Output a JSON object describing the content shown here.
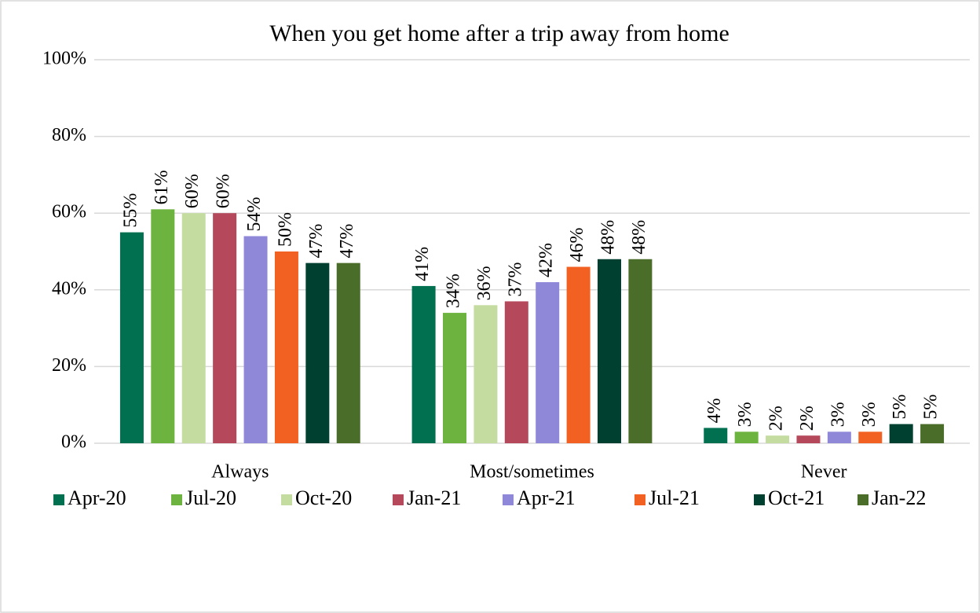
{
  "chart_data": {
    "type": "bar",
    "title": "When you get home after a trip away from home",
    "categories": [
      "Always",
      "Most/sometimes",
      "Never"
    ],
    "series": [
      {
        "name": "Apr-20",
        "color": "#007050",
        "values": [
          55,
          41,
          4
        ],
        "value_labels": [
          "55%",
          "41%",
          "4%"
        ]
      },
      {
        "name": "Jul-20",
        "color": "#6db33f",
        "values": [
          61,
          34,
          3
        ],
        "value_labels": [
          "61%",
          "34%",
          "3%"
        ]
      },
      {
        "name": "Oct-20",
        "color": "#c5dca0",
        "values": [
          60,
          36,
          2
        ],
        "value_labels": [
          "60%",
          "36%",
          "2%"
        ]
      },
      {
        "name": "Jan-21",
        "color": "#b5495b",
        "values": [
          60,
          37,
          2
        ],
        "value_labels": [
          "60%",
          "37%",
          "2%"
        ]
      },
      {
        "name": "Apr-21",
        "color": "#8f88d9",
        "values": [
          54,
          42,
          3
        ],
        "value_labels": [
          "54%",
          "42%",
          "3%"
        ]
      },
      {
        "name": "Jul-21",
        "color": "#f26122",
        "values": [
          50,
          46,
          3
        ],
        "value_labels": [
          "50%",
          "46%",
          "3%"
        ]
      },
      {
        "name": "Oct-21",
        "color": "#004030",
        "values": [
          47,
          48,
          5
        ],
        "value_labels": [
          "47%",
          "48%",
          "5%"
        ]
      },
      {
        "name": "Jan-22",
        "color": "#4a6e2a",
        "values": [
          47,
          48,
          5
        ],
        "value_labels": [
          "47%",
          "48%",
          "5%"
        ]
      }
    ],
    "ylim": [
      0,
      100
    ],
    "yticks": [
      {
        "value": 0,
        "label": "0%"
      },
      {
        "value": 20,
        "label": "20%"
      },
      {
        "value": 40,
        "label": "40%"
      },
      {
        "value": 60,
        "label": "60%"
      },
      {
        "value": 80,
        "label": "80%"
      },
      {
        "value": 100,
        "label": "100%"
      }
    ],
    "grid": true,
    "legend": "bottom"
  }
}
